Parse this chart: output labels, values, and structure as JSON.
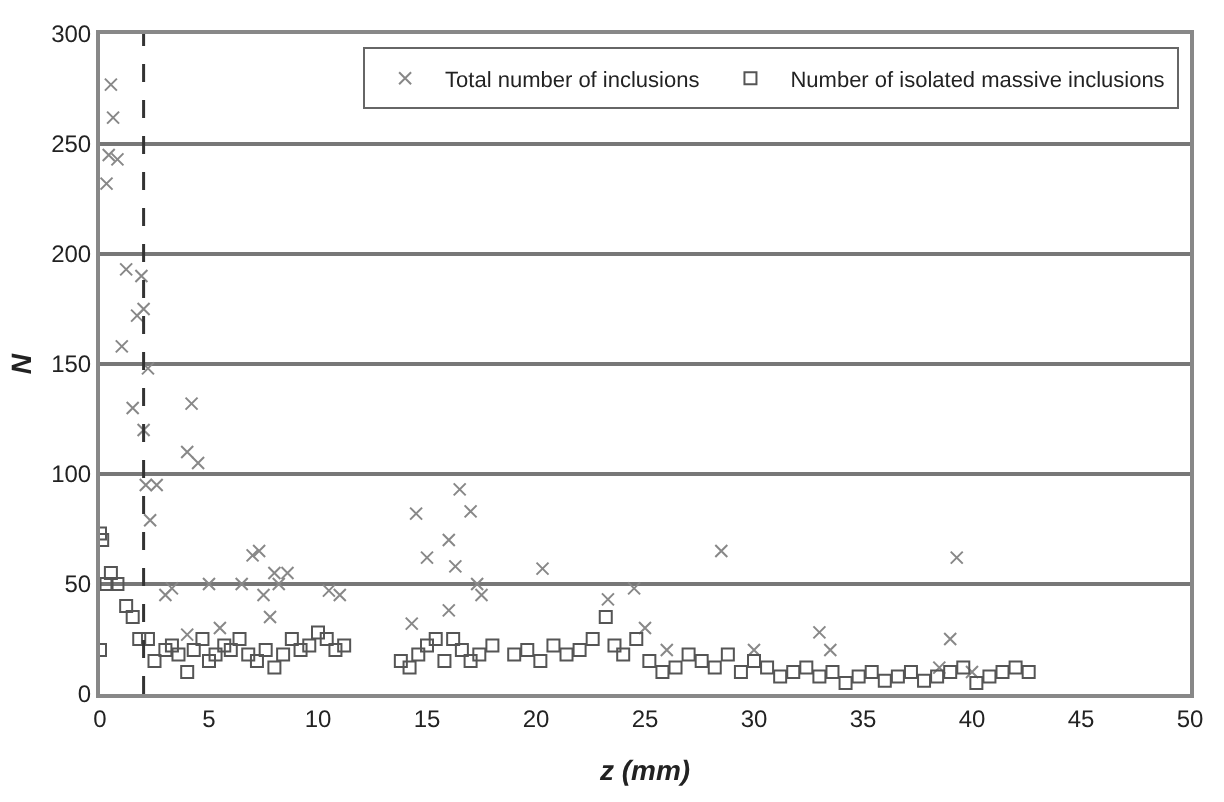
{
  "chart_data": {
    "type": "scatter",
    "xlabel": "z (mm)",
    "ylabel": "N",
    "xlim": [
      0,
      50
    ],
    "ylim": [
      0,
      300
    ],
    "xticks": [
      0,
      5,
      10,
      15,
      20,
      25,
      30,
      35,
      40,
      45,
      50
    ],
    "yticks": [
      0,
      50,
      100,
      150,
      200,
      250,
      300
    ],
    "grid": "y",
    "legend": "top right",
    "ref_lines": [
      {
        "axis": "x",
        "value": 2,
        "line_style": "dashed",
        "color": "#333333"
      }
    ],
    "series": [
      {
        "name": "Total number of inclusions",
        "color": "#888888",
        "marker": "cross",
        "x": [
          0.3,
          0.5,
          0.6,
          0.4,
          0.8,
          1.2,
          1.0,
          1.5,
          1.7,
          1.9,
          2.0,
          2.2,
          2.0,
          2.1,
          2.3,
          2.6,
          3.0,
          3.3,
          4.0,
          4.2,
          4.5,
          4.0,
          5.0,
          5.5,
          6.5,
          7.0,
          7.3,
          7.5,
          8.0,
          8.2,
          8.6,
          7.8,
          10.5,
          11.0,
          14.5,
          15.0,
          14.3,
          16.0,
          16.5,
          17.0,
          16.3,
          17.5,
          16.0,
          17.3,
          20.3,
          23.3,
          24.5,
          25.0,
          28.5,
          26.0,
          30.0,
          33.0,
          33.5,
          39.0,
          39.3,
          38.5,
          40.0
        ],
        "values": [
          232,
          277,
          262,
          245,
          243,
          193,
          158,
          130,
          172,
          190,
          175,
          148,
          120,
          95,
          79,
          95,
          45,
          48,
          110,
          132,
          105,
          27,
          50,
          30,
          50,
          63,
          65,
          45,
          55,
          50,
          55,
          35,
          47,
          45,
          82,
          62,
          32,
          70,
          93,
          83,
          58,
          45,
          38,
          50,
          57,
          43,
          48,
          30,
          65,
          20,
          20,
          28,
          20,
          25,
          62,
          12,
          10
        ]
      },
      {
        "name": "Number of isolated massive inclusions",
        "color": "#555555",
        "marker": "square",
        "x": [
          0,
          0.1,
          0,
          0.3,
          0.5,
          0.8,
          1.2,
          1.5,
          1.8,
          2.2,
          2.5,
          3.0,
          3.3,
          3.6,
          4.0,
          4.3,
          4.7,
          5.0,
          5.3,
          5.7,
          6.0,
          6.4,
          6.8,
          7.2,
          7.6,
          8.0,
          8.4,
          8.8,
          9.2,
          9.6,
          10.0,
          10.4,
          10.8,
          11.2,
          13.8,
          14.2,
          14.6,
          15.0,
          15.4,
          15.8,
          16.2,
          16.6,
          17.0,
          17.4,
          18.0,
          19.0,
          19.6,
          20.2,
          20.8,
          21.4,
          22.0,
          22.6,
          23.2,
          23.6,
          24.0,
          24.6,
          25.2,
          25.8,
          26.4,
          27.0,
          27.6,
          28.2,
          28.8,
          29.4,
          30.0,
          30.6,
          31.2,
          31.8,
          32.4,
          33.0,
          33.6,
          34.2,
          34.8,
          35.4,
          36.0,
          36.6,
          37.2,
          37.8,
          38.4,
          39.0,
          39.6,
          40.2,
          40.8,
          41.4,
          42.0,
          42.6
        ],
        "values": [
          73,
          70,
          20,
          50,
          55,
          50,
          40,
          35,
          25,
          25,
          15,
          20,
          22,
          18,
          10,
          20,
          25,
          15,
          18,
          22,
          20,
          25,
          18,
          15,
          20,
          12,
          18,
          25,
          20,
          22,
          28,
          25,
          20,
          22,
          15,
          12,
          18,
          22,
          25,
          15,
          25,
          20,
          15,
          18,
          22,
          18,
          20,
          15,
          22,
          18,
          20,
          25,
          35,
          22,
          18,
          25,
          15,
          10,
          12,
          18,
          15,
          12,
          18,
          10,
          15,
          12,
          8,
          10,
          12,
          8,
          10,
          5,
          8,
          10,
          6,
          8,
          10,
          6,
          8,
          10,
          12,
          5,
          8,
          10,
          12,
          10
        ]
      }
    ]
  }
}
